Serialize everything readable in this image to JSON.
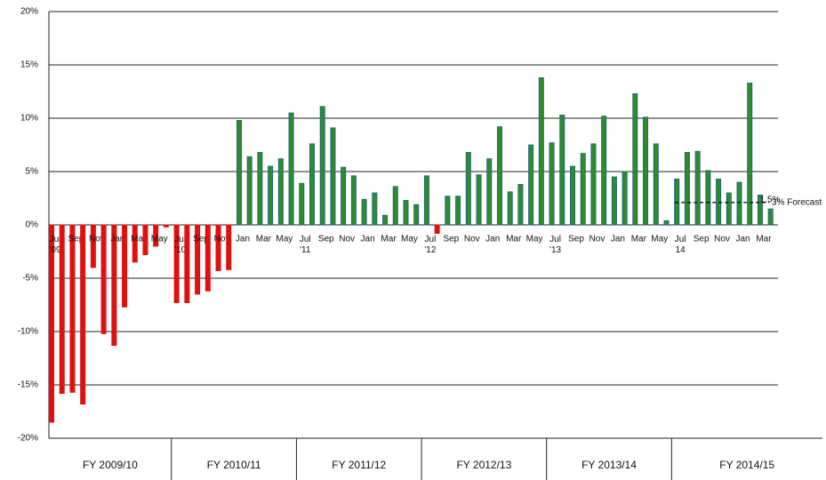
{
  "chart_data": {
    "type": "bar",
    "categories": [
      "Jul '09",
      null,
      "Sep",
      null,
      "Nov",
      null,
      "Jan",
      null,
      "Mar",
      null,
      "May",
      null,
      "Jul '10",
      null,
      "Sep",
      null,
      "Nov",
      null,
      "Jan",
      null,
      "Mar",
      null,
      "May",
      null,
      "Jul '11",
      null,
      "Sep",
      null,
      "Nov",
      null,
      "Jan",
      null,
      "Mar",
      null,
      "May",
      null,
      "Jul '12",
      null,
      "Sep",
      null,
      "Nov",
      null,
      "Jan",
      null,
      "Mar",
      null,
      "May",
      null,
      "Jul '13",
      null,
      "Sep",
      null,
      "Nov",
      null,
      "Jan",
      null,
      "Mar",
      null,
      "May",
      null,
      "Jul 14",
      null,
      "Sep",
      null,
      "Nov",
      null,
      "Jan",
      null,
      "Mar",
      null
    ],
    "values": [
      -18.5,
      -15.8,
      -15.7,
      -16.8,
      -4,
      -10.2,
      -11.3,
      -7.7,
      -3.5,
      -2.8,
      -2,
      -0.2,
      -7.3,
      -7.3,
      -6.5,
      -6.2,
      -4.3,
      -4.2,
      9.8,
      6.4,
      6.8,
      5.5,
      6.2,
      10.5,
      3.9,
      7.6,
      11.1,
      9.1,
      5.4,
      4.6,
      2.4,
      3.0,
      0.9,
      3.6,
      2.3,
      1.9,
      4.6,
      -0.8,
      2.7,
      2.7,
      6.8,
      4.7,
      6.2,
      9.2,
      3.1,
      3.8,
      7.5,
      13.8,
      7.7,
      10.3,
      5.5,
      6.7,
      7.6,
      10.2,
      4.5,
      5.0,
      12.3,
      10.1,
      7.6,
      0.4,
      4.3,
      6.8,
      6.9,
      5.1,
      4.3,
      3.0,
      4.0,
      13.3,
      2.8,
      1.5
    ],
    "value_labels": [
      null,
      null,
      null,
      null,
      null,
      null,
      null,
      null,
      null,
      null,
      null,
      null,
      null,
      null,
      null,
      null,
      null,
      null,
      null,
      null,
      null,
      null,
      null,
      null,
      null,
      null,
      null,
      null,
      null,
      null,
      null,
      null,
      null,
      null,
      null,
      null,
      null,
      null,
      null,
      null,
      null,
      null,
      null,
      null,
      null,
      null,
      null,
      null,
      null,
      null,
      null,
      null,
      null,
      null,
      null,
      null,
      null,
      null,
      null,
      null,
      null,
      null,
      null,
      null,
      null,
      null,
      null,
      null,
      null,
      "1.5%"
    ],
    "positive_color": "#2e8b2e",
    "negative_color": "#e01010",
    "ylim": [
      -20,
      20
    ],
    "yticks": [
      {
        "value": -20,
        "label": "-20%"
      },
      {
        "value": -15,
        "label": "-15%"
      },
      {
        "value": -10,
        "label": "-10%"
      },
      {
        "value": -5,
        "label": "-5%"
      },
      {
        "value": 0,
        "label": "0%"
      },
      {
        "value": 5,
        "label": "5%"
      },
      {
        "value": 10,
        "label": "10%"
      },
      {
        "value": 15,
        "label": "15%"
      },
      {
        "value": 20,
        "label": "20%"
      }
    ],
    "grid": true,
    "forecast": {
      "text": "3% Forecast",
      "value": 2.1
    },
    "fiscal_years": [
      "FY 2009/10",
      "FY 2010/11",
      "FY 2011/12",
      "FY 2012/13",
      "FY 2013/14",
      "FY 2014/15"
    ]
  }
}
